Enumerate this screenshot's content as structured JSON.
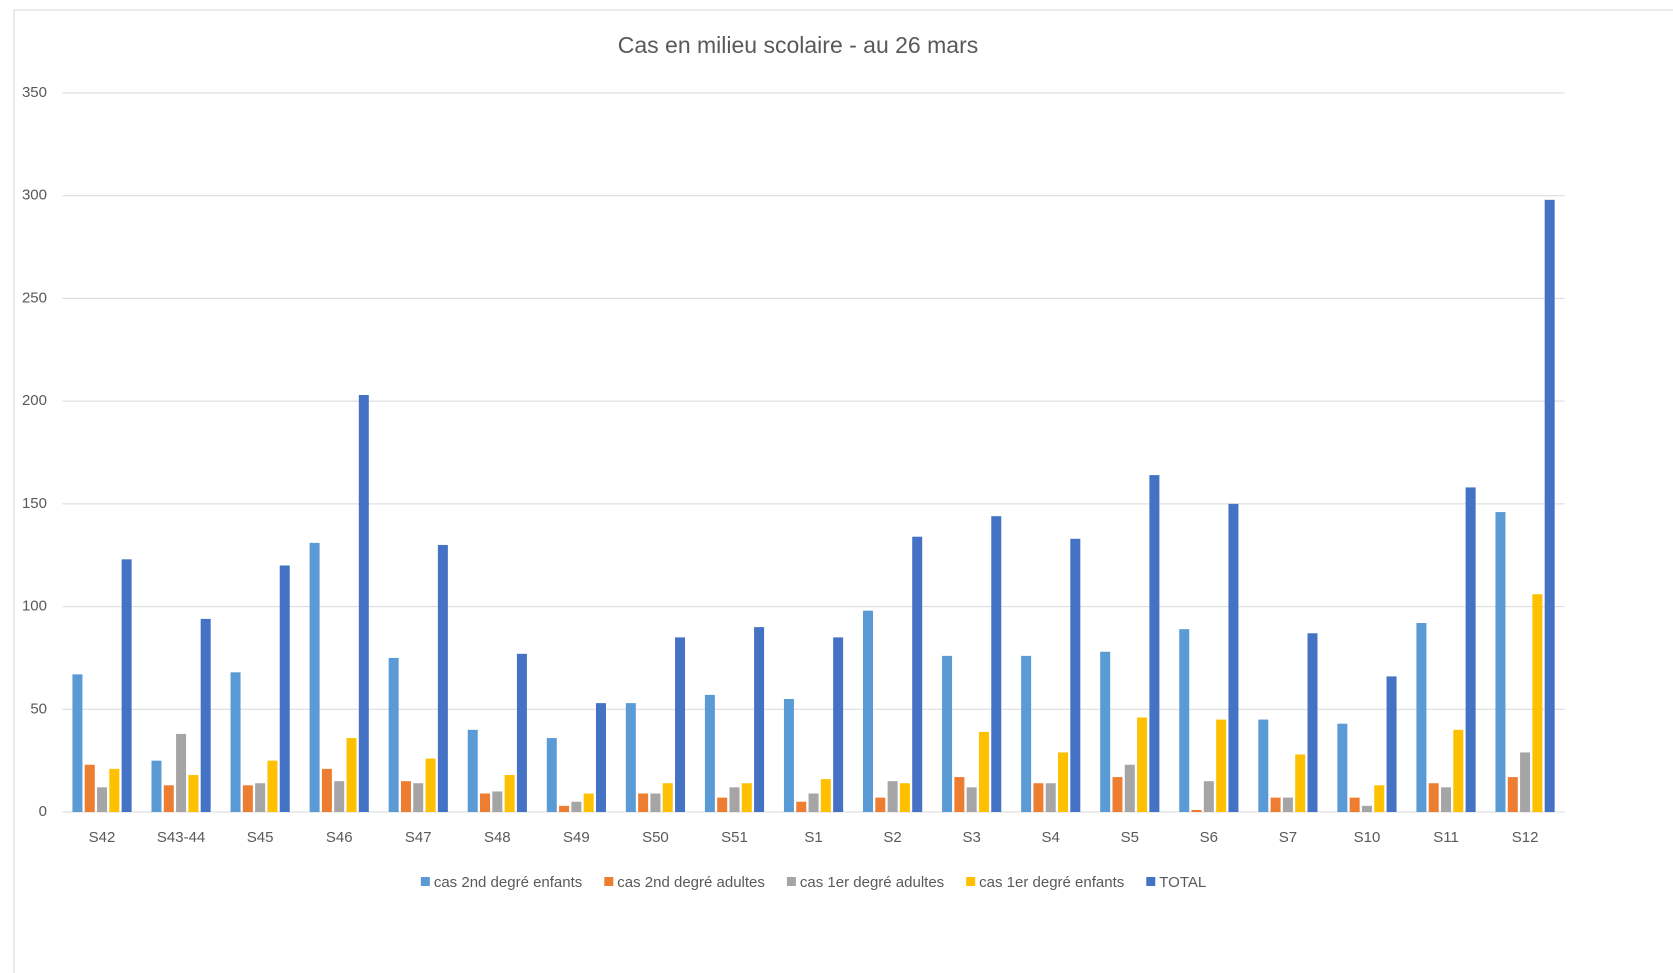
{
  "chart_data": {
    "type": "bar",
    "title": "Cas en milieu scolaire - au 26 mars",
    "categories": [
      "S42",
      "S43-44",
      "S45",
      "S46",
      "S47",
      "S48",
      "S49",
      "S50",
      "S51",
      "S1",
      "S2",
      "S3",
      "S4",
      "S5",
      "S6",
      "S7",
      "S10",
      "S11",
      "S12"
    ],
    "series": [
      {
        "name": "cas 2nd degré enfants",
        "color": "#5b9bd5",
        "values": [
          67,
          25,
          68,
          131,
          75,
          40,
          36,
          53,
          57,
          55,
          98,
          76,
          76,
          78,
          89,
          45,
          43,
          92,
          146
        ]
      },
      {
        "name": "cas 2nd degré adultes",
        "color": "#ed7d31",
        "values": [
          23,
          13,
          13,
          21,
          15,
          9,
          3,
          9,
          7,
          5,
          7,
          17,
          14,
          17,
          1,
          7,
          7,
          14,
          17
        ]
      },
      {
        "name": "cas 1er degré  adultes",
        "color": "#a5a5a5",
        "values": [
          12,
          38,
          14,
          15,
          14,
          10,
          5,
          9,
          12,
          9,
          15,
          12,
          14,
          23,
          15,
          7,
          3,
          12,
          29
        ]
      },
      {
        "name": "cas 1er degré enfants",
        "color": "#ffc000",
        "values": [
          21,
          18,
          25,
          36,
          26,
          18,
          9,
          14,
          14,
          16,
          14,
          39,
          29,
          46,
          45,
          28,
          13,
          40,
          106
        ]
      },
      {
        "name": "TOTAL",
        "color": "#4472c4",
        "values": [
          123,
          94,
          120,
          203,
          130,
          77,
          53,
          85,
          90,
          85,
          134,
          144,
          133,
          164,
          150,
          87,
          66,
          158,
          298
        ]
      }
    ],
    "ylim": [
      0,
      350
    ],
    "yticks": [
      0,
      50,
      100,
      150,
      200,
      250,
      300,
      350
    ],
    "grid": true,
    "legend": "bottom"
  }
}
